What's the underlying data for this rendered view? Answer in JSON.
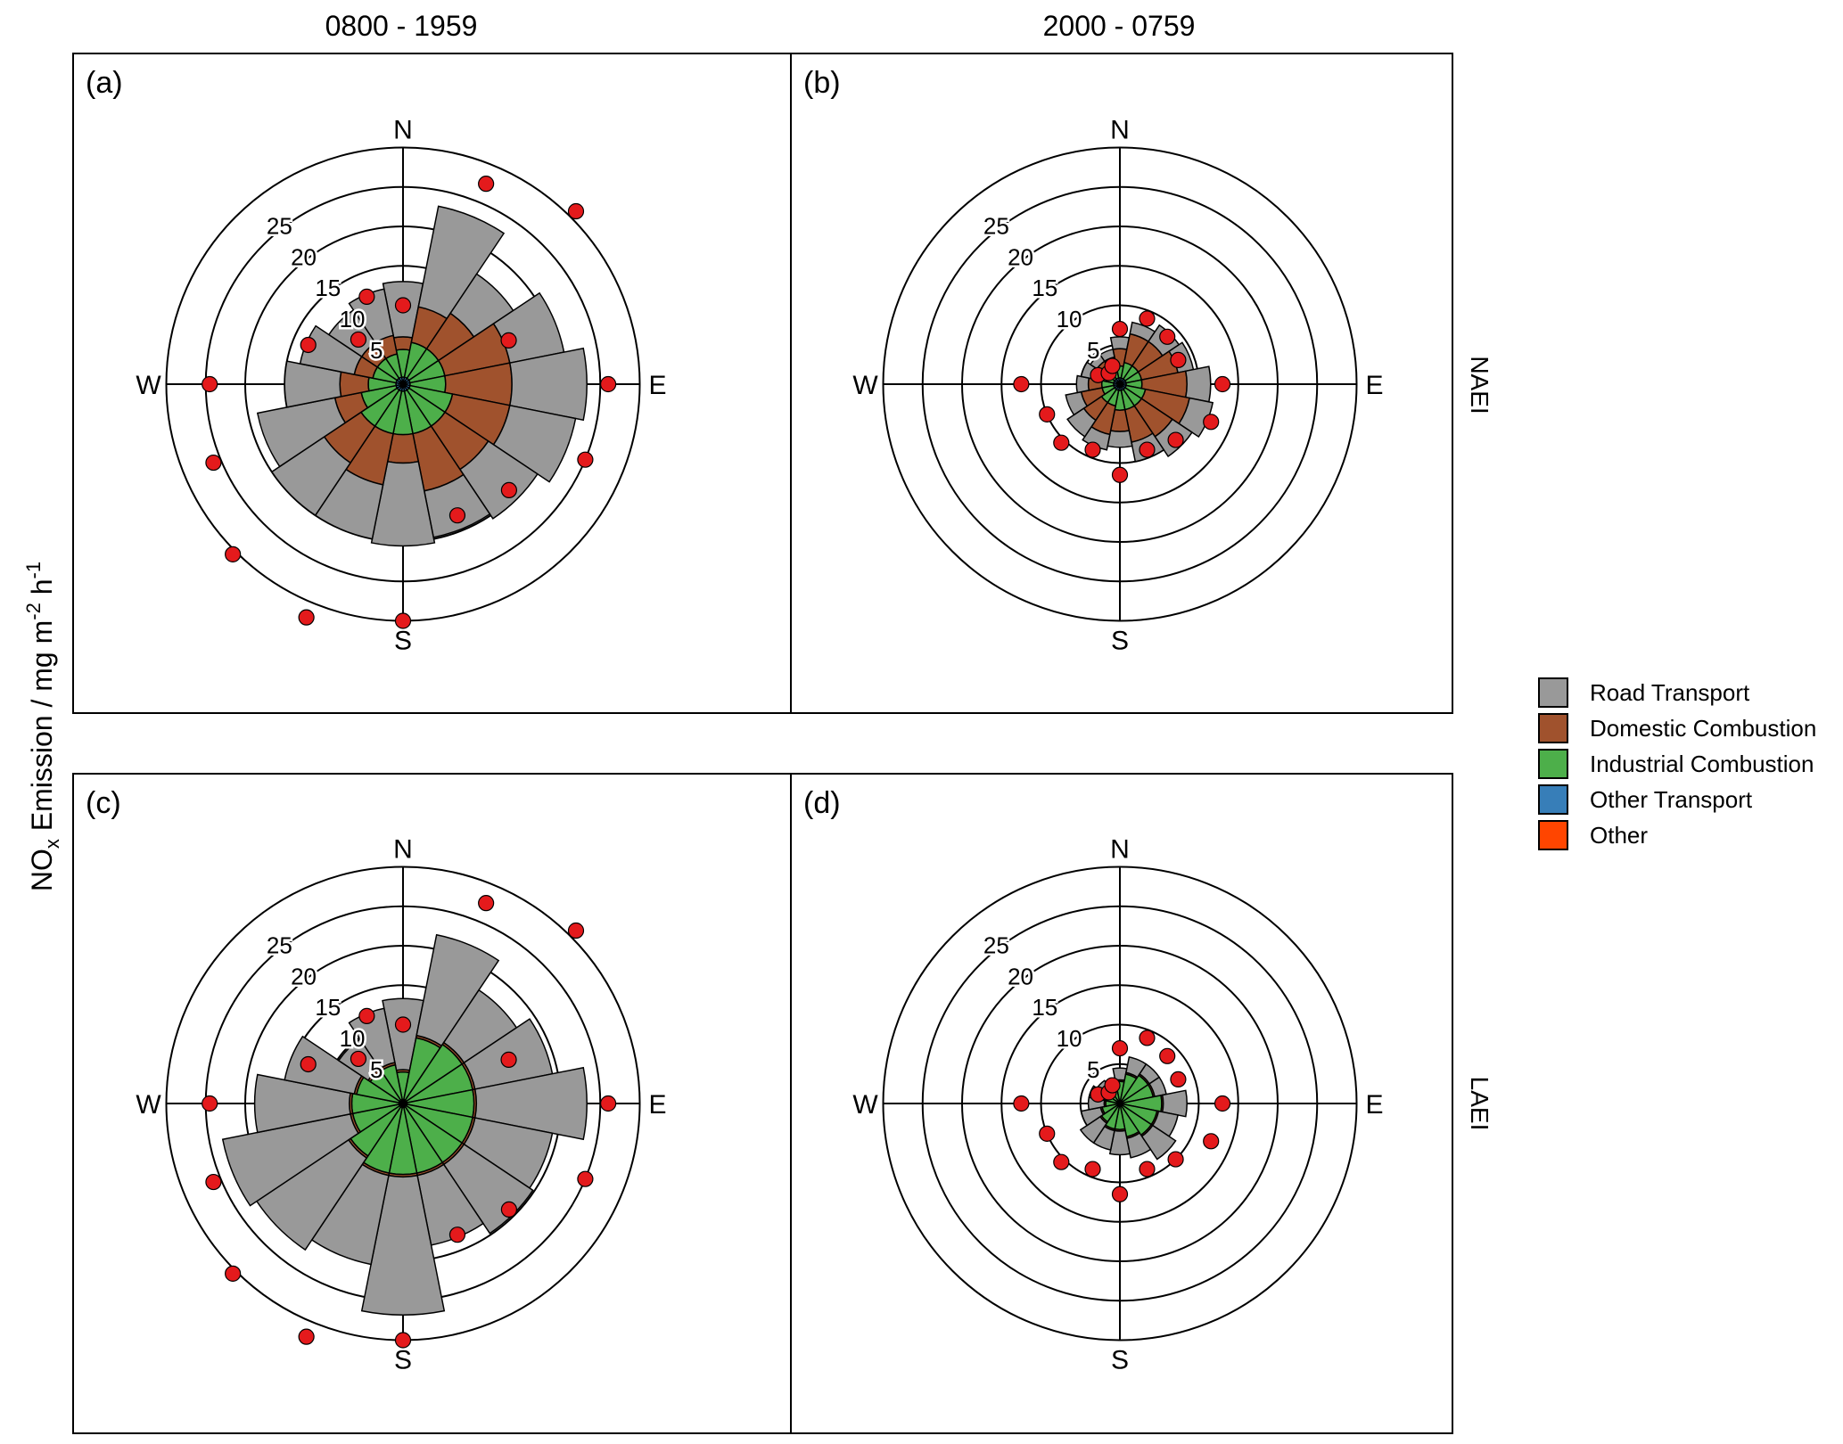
{
  "figure": {
    "column_titles": [
      "0800 - 1959",
      "2000 - 0759"
    ],
    "row_labels": [
      "NAEI",
      "LAEI"
    ],
    "y_axis_label": {
      "main": "NO",
      "sub": "x",
      "rest": " Emission / mg m",
      "sup1": "-2",
      "mid": " h",
      "sup2": "-1"
    }
  },
  "legend": {
    "items": [
      {
        "label": "Road Transport",
        "color": "#999999"
      },
      {
        "label": "Domestic Combustion",
        "color": "#A0522D"
      },
      {
        "label": "Industrial Combustion",
        "color": "#4DAF4A"
      },
      {
        "label": "Other Transport",
        "color": "#377EB8"
      },
      {
        "label": "Other",
        "color": "#FF4500"
      }
    ]
  },
  "chart_data": [
    {
      "type": "polar-stacked-bar",
      "panel": "(a)",
      "column": "0800 - 1959",
      "row": "NAEI",
      "directions_deg": [
        0,
        22.5,
        45,
        67.5,
        90,
        112.5,
        135,
        157.5,
        180,
        202.5,
        225,
        247.5,
        270,
        292.5,
        315,
        337.5
      ],
      "radial_ticks": [
        5,
        10,
        15,
        20,
        25
      ],
      "radial_max": 30,
      "compass": [
        "N",
        "E",
        "S",
        "W"
      ],
      "series": [
        {
          "name": "Other",
          "values": [
            0.3,
            0.3,
            0.3,
            0.3,
            0.3,
            0.3,
            0.3,
            0.3,
            0.3,
            0.3,
            0.3,
            0.3,
            0.3,
            0.3,
            0.3,
            0.3
          ]
        },
        {
          "name": "Other Transport",
          "values": [
            0.6,
            0.6,
            0.6,
            0.6,
            0.6,
            0.6,
            0.6,
            0.6,
            0.6,
            0.6,
            0.6,
            0.6,
            0.6,
            0.6,
            0.6,
            0.6
          ]
        },
        {
          "name": "Industrial Combustion",
          "values": [
            3.5,
            4.5,
            4.5,
            4.5,
            4.5,
            5.5,
            5.5,
            5.5,
            5.5,
            5.5,
            5.5,
            4.5,
            3.5,
            3.0,
            3.0,
            3.0
          ]
        },
        {
          "name": "Domestic Combustion",
          "values": [
            1.6,
            4.6,
            5.4,
            8.4,
            8.4,
            7.4,
            6.6,
            7.4,
            3.6,
            6.6,
            5.6,
            3.4,
            3.6,
            2.4,
            2.4,
            2.4
          ]
        },
        {
          "name": "Road Transport",
          "values": [
            7.0,
            13.0,
            6.0,
            7.0,
            9.5,
            8.5,
            7.5,
            6.0,
            10.5,
            7.0,
            8.0,
            10.0,
            7.0,
            7.0,
            5.0,
            6.0
          ]
        }
      ],
      "points": [
        10,
        27.5,
        31,
        14.5,
        26,
        25,
        19,
        18,
        30,
        32,
        30.5,
        26,
        24.5,
        13,
        8,
        12
      ]
    },
    {
      "type": "polar-stacked-bar",
      "panel": "(b)",
      "column": "2000 - 0759",
      "row": "NAEI",
      "directions_deg": [
        0,
        22.5,
        45,
        67.5,
        90,
        112.5,
        135,
        157.5,
        180,
        202.5,
        225,
        247.5,
        270,
        292.5,
        315,
        337.5
      ],
      "radial_ticks": [
        5,
        10,
        15,
        20,
        25
      ],
      "radial_max": 30,
      "compass": [
        "N",
        "E",
        "S",
        "W"
      ],
      "series": [
        {
          "name": "Other",
          "values": [
            0.3,
            0.3,
            0.3,
            0.3,
            0.3,
            0.3,
            0.3,
            0.3,
            0.3,
            0.3,
            0.3,
            0.3,
            0.3,
            0.3,
            0.3,
            0.3
          ]
        },
        {
          "name": "Other Transport",
          "values": [
            0.5,
            0.5,
            0.5,
            0.5,
            0.5,
            0.5,
            0.5,
            0.5,
            0.5,
            0.5,
            0.5,
            0.5,
            0.5,
            0.5,
            0.5,
            0.5
          ]
        },
        {
          "name": "Industrial Combustion",
          "values": [
            1.5,
            2.0,
            2.0,
            2.0,
            2.0,
            2.5,
            2.5,
            2.5,
            2.5,
            2.0,
            2.0,
            1.5,
            1.5,
            1.0,
            1.0,
            1.0
          ]
        },
        {
          "name": "Domestic Combustion",
          "values": [
            2.2,
            3.7,
            3.7,
            4.7,
            5.7,
            5.7,
            4.7,
            4.2,
            2.7,
            3.7,
            2.7,
            2.7,
            1.7,
            1.7,
            1.7,
            1.7
          ]
        },
        {
          "name": "Road Transport",
          "values": [
            1.5,
            1.5,
            2.5,
            2.0,
            3.0,
            3.0,
            3.0,
            2.5,
            2.0,
            2.0,
            2.5,
            2.0,
            1.5,
            1.5,
            1.0,
            1.0
          ]
        }
      ],
      "points": [
        7,
        9,
        8.5,
        8,
        13,
        12.5,
        10,
        9,
        11.5,
        9,
        10.5,
        10,
        12.5,
        3,
        2,
        2.5
      ]
    },
    {
      "type": "polar-stacked-bar",
      "panel": "(c)",
      "column": "0800 - 1959",
      "row": "LAEI",
      "directions_deg": [
        0,
        22.5,
        45,
        67.5,
        90,
        112.5,
        135,
        157.5,
        180,
        202.5,
        225,
        247.5,
        270,
        292.5,
        315,
        337.5
      ],
      "radial_ticks": [
        5,
        10,
        15,
        20,
        25
      ],
      "radial_max": 30,
      "compass": [
        "N",
        "E",
        "S",
        "W"
      ],
      "series": [
        {
          "name": "Other",
          "values": [
            0.3,
            0.3,
            0.3,
            0.3,
            0.3,
            0.3,
            0.3,
            0.3,
            0.3,
            0.3,
            0.3,
            0.3,
            0.3,
            0.3,
            0.3,
            0.3
          ]
        },
        {
          "name": "Other Transport",
          "values": [
            0.2,
            0.2,
            0.2,
            0.2,
            0.2,
            0.2,
            0.2,
            0.2,
            0.2,
            0.2,
            0.2,
            0.2,
            0.2,
            0.2,
            0.2,
            0.2
          ]
        },
        {
          "name": "Industrial Combustion",
          "values": [
            3.5,
            8.0,
            8.5,
            8.5,
            8.5,
            8.5,
            8.5,
            8.5,
            8.5,
            8.5,
            7.5,
            6.0,
            6.0,
            5.5,
            4.5,
            4.5
          ]
        },
        {
          "name": "Domestic Combustion",
          "values": [
            0.3,
            0.3,
            0.3,
            0.3,
            0.3,
            0.3,
            0.3,
            0.3,
            0.3,
            0.3,
            0.3,
            0.3,
            0.3,
            0.3,
            0.3,
            0.3
          ]
        },
        {
          "name": "Road Transport",
          "values": [
            9.0,
            13.0,
            8.0,
            10.0,
            14.0,
            10.0,
            10.5,
            9.0,
            17.5,
            11.5,
            14.0,
            16.5,
            12.0,
            9.0,
            4.5,
            7.0
          ]
        }
      ],
      "points": [
        10,
        27.5,
        31,
        14.5,
        26,
        25,
        19,
        18,
        30,
        32,
        30.5,
        26,
        24.5,
        13,
        8,
        12
      ]
    },
    {
      "type": "polar-stacked-bar",
      "panel": "(d)",
      "column": "2000 - 0759",
      "row": "LAEI",
      "directions_deg": [
        0,
        22.5,
        45,
        67.5,
        90,
        112.5,
        135,
        157.5,
        180,
        202.5,
        225,
        247.5,
        270,
        292.5,
        315,
        337.5
      ],
      "radial_ticks": [
        5,
        10,
        15,
        20,
        25
      ],
      "radial_max": 30,
      "compass": [
        "N",
        "E",
        "S",
        "W"
      ],
      "series": [
        {
          "name": "Other",
          "values": [
            0.2,
            0.2,
            0.2,
            0.2,
            0.2,
            0.2,
            0.2,
            0.2,
            0.2,
            0.2,
            0.2,
            0.2,
            0.2,
            0.2,
            0.2,
            0.2
          ]
        },
        {
          "name": "Other Transport",
          "values": [
            0.1,
            0.1,
            0.1,
            0.1,
            0.1,
            0.1,
            0.1,
            0.1,
            0.1,
            0.1,
            0.1,
            0.1,
            0.1,
            0.1,
            0.1,
            0.1
          ]
        },
        {
          "name": "Industrial Combustion",
          "values": [
            2.5,
            3.5,
            4.0,
            4.0,
            5.0,
            4.5,
            4.5,
            4.0,
            3.0,
            3.0,
            2.5,
            2.0,
            1.5,
            1.5,
            1.5,
            1.5
          ]
        },
        {
          "name": "Domestic Combustion",
          "values": [
            0.2,
            0.2,
            0.2,
            0.2,
            0.2,
            0.2,
            0.2,
            0.2,
            0.2,
            0.2,
            0.2,
            0.2,
            0.2,
            0.2,
            0.2,
            0.2
          ]
        },
        {
          "name": "Road Transport",
          "values": [
            1.5,
            2.0,
            1.5,
            1.5,
            3.0,
            2.5,
            3.5,
            2.5,
            3.0,
            2.5,
            3.0,
            2.5,
            2.0,
            2.0,
            1.5,
            1.0
          ]
        }
      ],
      "points": [
        7,
        9,
        8.5,
        8,
        13,
        12.5,
        10,
        9,
        11.5,
        9,
        10.5,
        10,
        12.5,
        3,
        2,
        2.5
      ]
    }
  ]
}
